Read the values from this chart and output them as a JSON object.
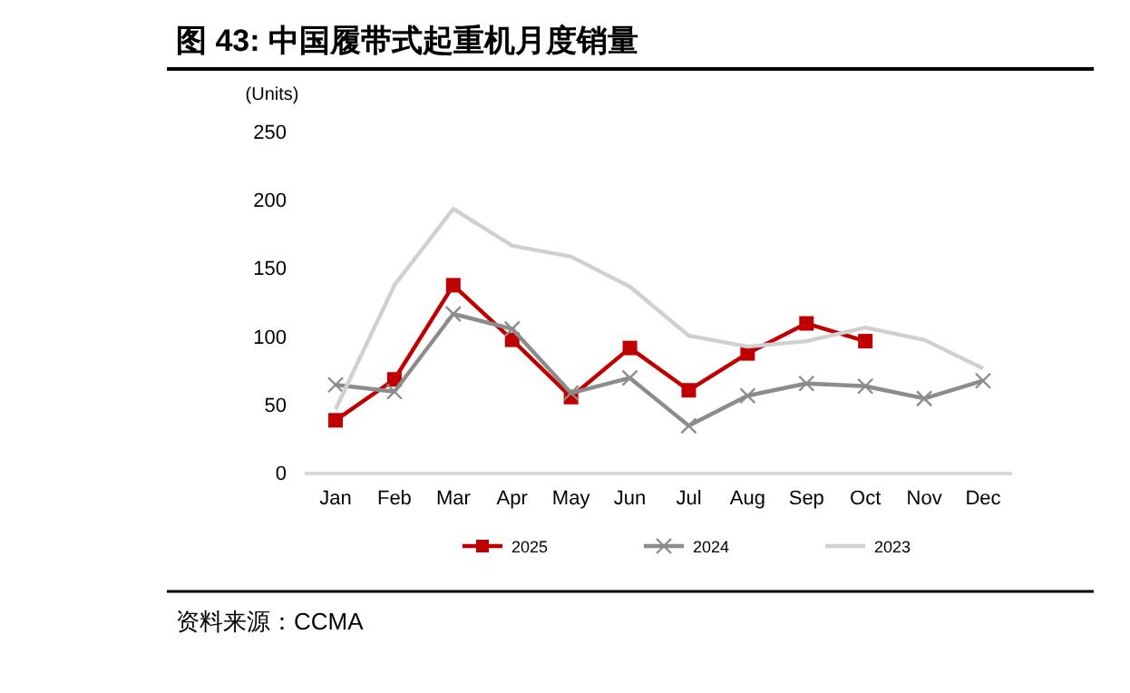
{
  "chart_data": {
    "type": "line",
    "title": "图 43: 中国履带式起重机月度销量",
    "ylabel": "(Units)",
    "categories": [
      "Jan",
      "Feb",
      "Mar",
      "Apr",
      "May",
      "Jun",
      "Jul",
      "Aug",
      "Sep",
      "Oct",
      "Nov",
      "Dec"
    ],
    "series": [
      {
        "name": "2025",
        "color": "#c00000",
        "marker": "square",
        "values": [
          39,
          69,
          138,
          98,
          56,
          92,
          61,
          88,
          110,
          97,
          null,
          null
        ]
      },
      {
        "name": "2024",
        "color": "#8c8c8c",
        "marker": "cross",
        "values": [
          65,
          60,
          117,
          106,
          59,
          70,
          35,
          57,
          66,
          64,
          55,
          68
        ]
      },
      {
        "name": "2023",
        "color": "#d0d0d0",
        "marker": "none",
        "values": [
          47,
          138,
          194,
          167,
          159,
          137,
          101,
          93,
          97,
          107,
          98,
          77
        ]
      }
    ],
    "ylim": [
      0,
      250
    ],
    "yticks": [
      0,
      50,
      100,
      150,
      200,
      250
    ],
    "grid": false,
    "legend": "bottom",
    "annotations": [
      "资料来源：CCMA"
    ]
  }
}
